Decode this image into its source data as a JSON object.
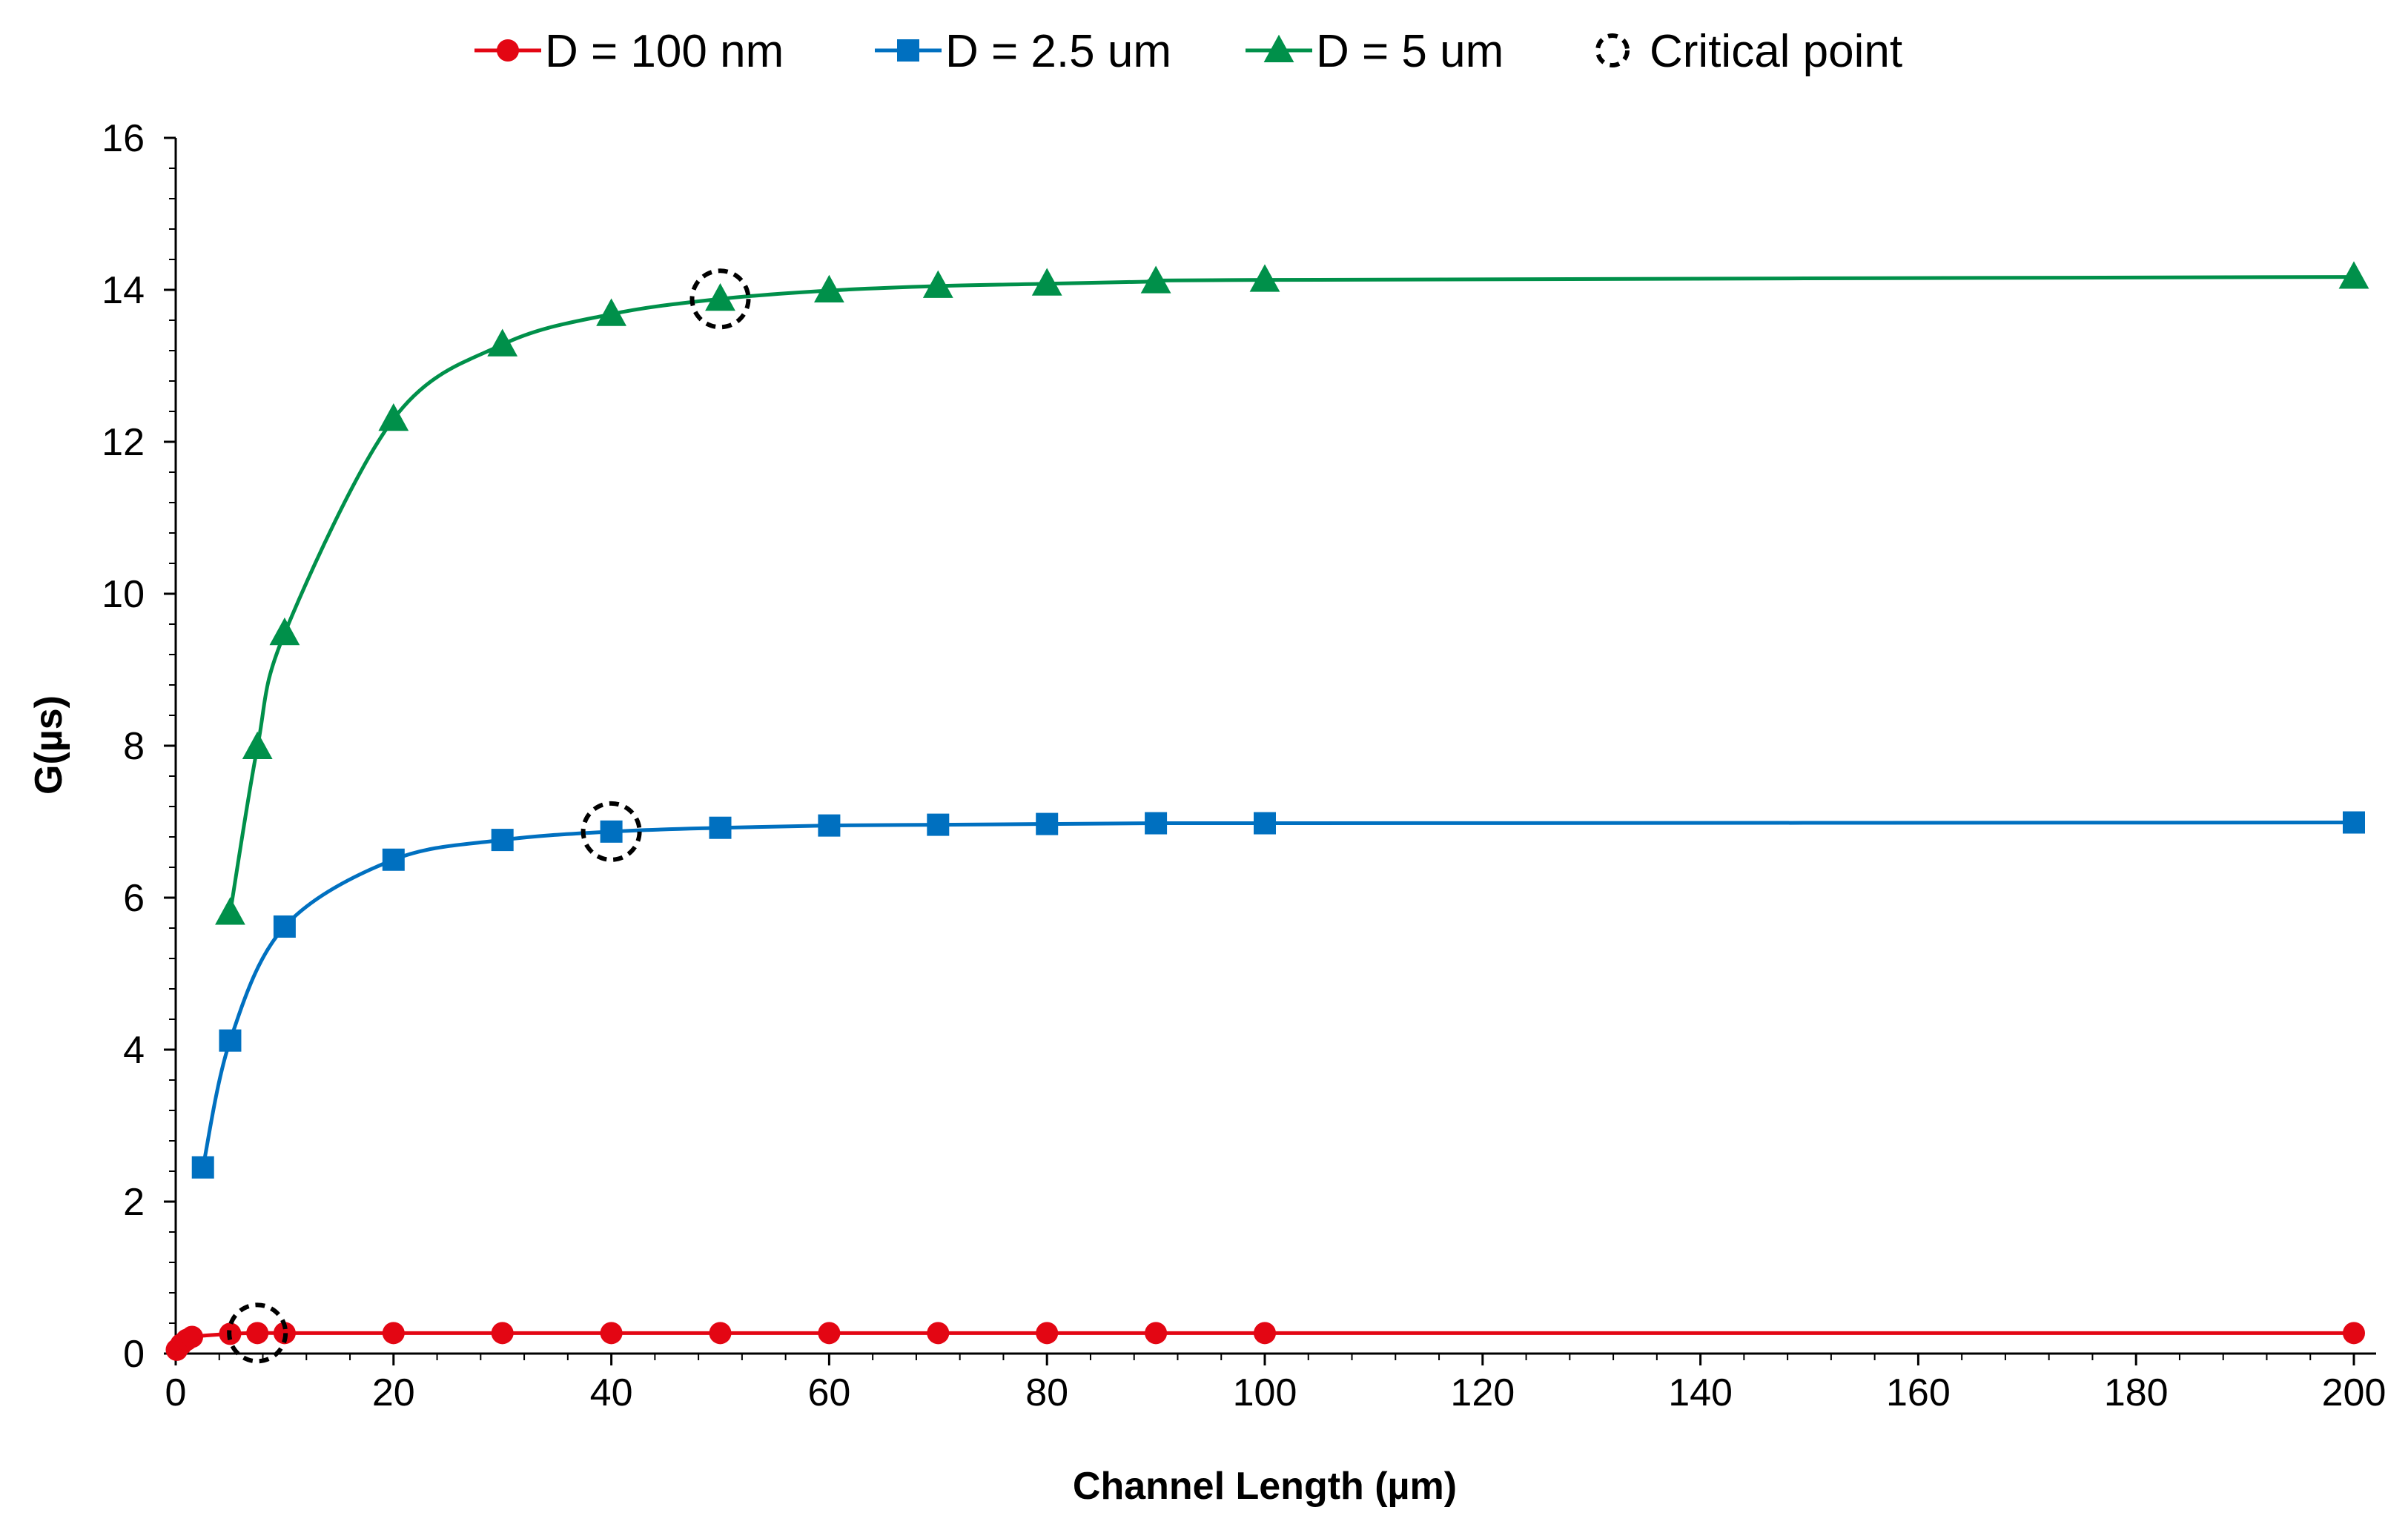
{
  "chart_data": {
    "type": "line",
    "xlabel": "Channel Length (µm)",
    "ylabel": "G(µs)",
    "ylim": [
      0,
      16
    ],
    "y_ticks": [
      0,
      2,
      4,
      6,
      8,
      10,
      12,
      14,
      16
    ],
    "x_tick_labels": [
      "0",
      "20",
      "40",
      "60",
      "80",
      "100",
      "120",
      "140",
      "160",
      "180",
      "200"
    ],
    "x_axis_note": "category-like axis: labels 0–100 linear, final label 200 placed at 200 position",
    "grid": false,
    "legend_position": "top",
    "legend": [
      {
        "label": "D = 100 nm",
        "marker": "circle",
        "color": "#e30613"
      },
      {
        "label": "D = 2.5 um",
        "marker": "square",
        "color": "#0070c0"
      },
      {
        "label": "D = 5 um",
        "marker": "triangle",
        "color": "#00904a"
      },
      {
        "label": "Critical point",
        "marker": "dashed-circle",
        "color": "#000000"
      }
    ],
    "series": [
      {
        "name": "D = 100 nm",
        "color": "#e30613",
        "marker": "circle",
        "x": [
          0.1,
          0.5,
          1,
          1.5,
          5,
          7.5,
          10,
          20,
          30,
          40,
          50,
          60,
          70,
          80,
          90,
          100,
          200
        ],
        "y": [
          0.05,
          0.12,
          0.18,
          0.22,
          0.26,
          0.27,
          0.27,
          0.27,
          0.27,
          0.27,
          0.27,
          0.27,
          0.27,
          0.27,
          0.27,
          0.27,
          0.27
        ]
      },
      {
        "name": "D = 2.5 um",
        "color": "#0070c0",
        "marker": "square",
        "x": [
          2.5,
          5,
          10,
          20,
          30,
          40,
          50,
          60,
          70,
          80,
          90,
          100,
          200
        ],
        "y": [
          2.45,
          4.12,
          5.62,
          6.5,
          6.76,
          6.87,
          6.92,
          6.95,
          6.96,
          6.97,
          6.98,
          6.98,
          6.99
        ]
      },
      {
        "name": "D = 5 um",
        "color": "#00904a",
        "marker": "triangle",
        "x": [
          5,
          7.5,
          10,
          20,
          30,
          40,
          50,
          60,
          70,
          80,
          90,
          100,
          200
        ],
        "y": [
          5.8,
          7.98,
          9.48,
          12.3,
          13.28,
          13.68,
          13.88,
          13.99,
          14.05,
          14.08,
          14.11,
          14.13,
          14.17
        ]
      }
    ],
    "critical_points": [
      {
        "series": "D = 100 nm",
        "x": 7.5,
        "y": 0.27
      },
      {
        "series": "D = 2.5 um",
        "x": 40,
        "y": 6.87
      },
      {
        "series": "D = 5 um",
        "x": 50,
        "y": 13.88
      }
    ]
  }
}
